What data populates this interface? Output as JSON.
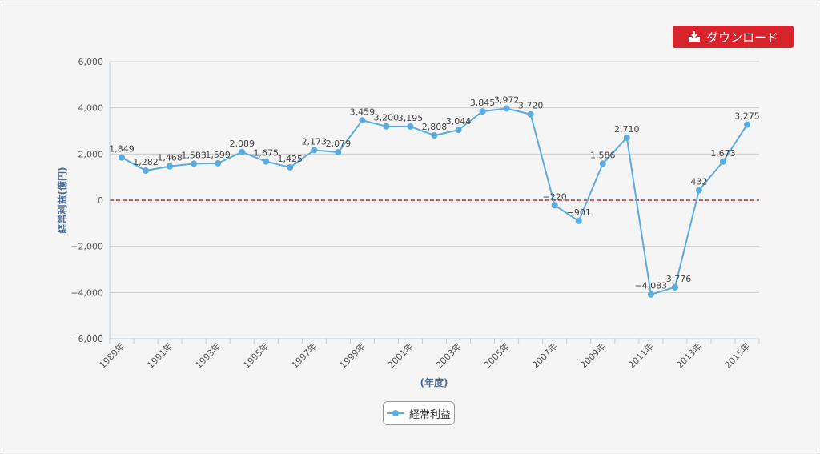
{
  "download_button": {
    "label": "ダウンロード",
    "icon": "download-tray-icon"
  },
  "colors": {
    "series": "#5aace2",
    "zero_line": "#d62728",
    "button": "#d7232b"
  },
  "legend": {
    "label": "経常利益"
  },
  "chart_data": {
    "type": "line",
    "title": "",
    "xlabel": "(年度)",
    "ylabel": "経常利益(億円)",
    "ylim": [
      -6000,
      6000
    ],
    "yticks": [
      -6000,
      -4000,
      -2000,
      0,
      2000,
      4000,
      6000
    ],
    "grid": true,
    "legend_position": "bottom-center",
    "categories": [
      "1989年",
      "1990年",
      "1991年",
      "1992年",
      "1993年",
      "1994年",
      "1995年",
      "1996年",
      "1997年",
      "1998年",
      "1999年",
      "2000年",
      "2001年",
      "2002年",
      "2003年",
      "2004年",
      "2005年",
      "2006年",
      "2007年",
      "2008年",
      "2009年",
      "2010年",
      "2011年",
      "2012年",
      "2013年",
      "2014年",
      "2015年"
    ],
    "tick_labels": [
      "1989年",
      "1991年",
      "1993年",
      "1995年",
      "1997年",
      "1999年",
      "2001年",
      "2003年",
      "2005年",
      "2007年",
      "2009年",
      "2011年",
      "2013年",
      "2015年"
    ],
    "reference_lines": [
      {
        "y": 0,
        "style": "dashed"
      }
    ],
    "series": [
      {
        "name": "経常利益",
        "values": [
          1849,
          1282,
          1468,
          1583,
          1599,
          2089,
          1675,
          1425,
          2173,
          2079,
          3459,
          3200,
          3195,
          2808,
          3044,
          3845,
          3972,
          3720,
          -220,
          -901,
          1586,
          2710,
          -4083,
          -3776,
          432,
          1673,
          3275
        ],
        "data_labels": [
          "1,849",
          "1,282",
          "1,468",
          "1,583",
          "1,599",
          "2,089",
          "1,675",
          "1,425",
          "2,173",
          "2,079",
          "3,459",
          "3,200",
          "3,195",
          "2,808",
          "3,044",
          "3,845",
          "3,972",
          "3,720",
          "−220",
          "−901",
          "1,586",
          "2,710",
          "−4,083",
          "−3,776",
          "432",
          "1,673",
          "3,275"
        ]
      }
    ]
  }
}
